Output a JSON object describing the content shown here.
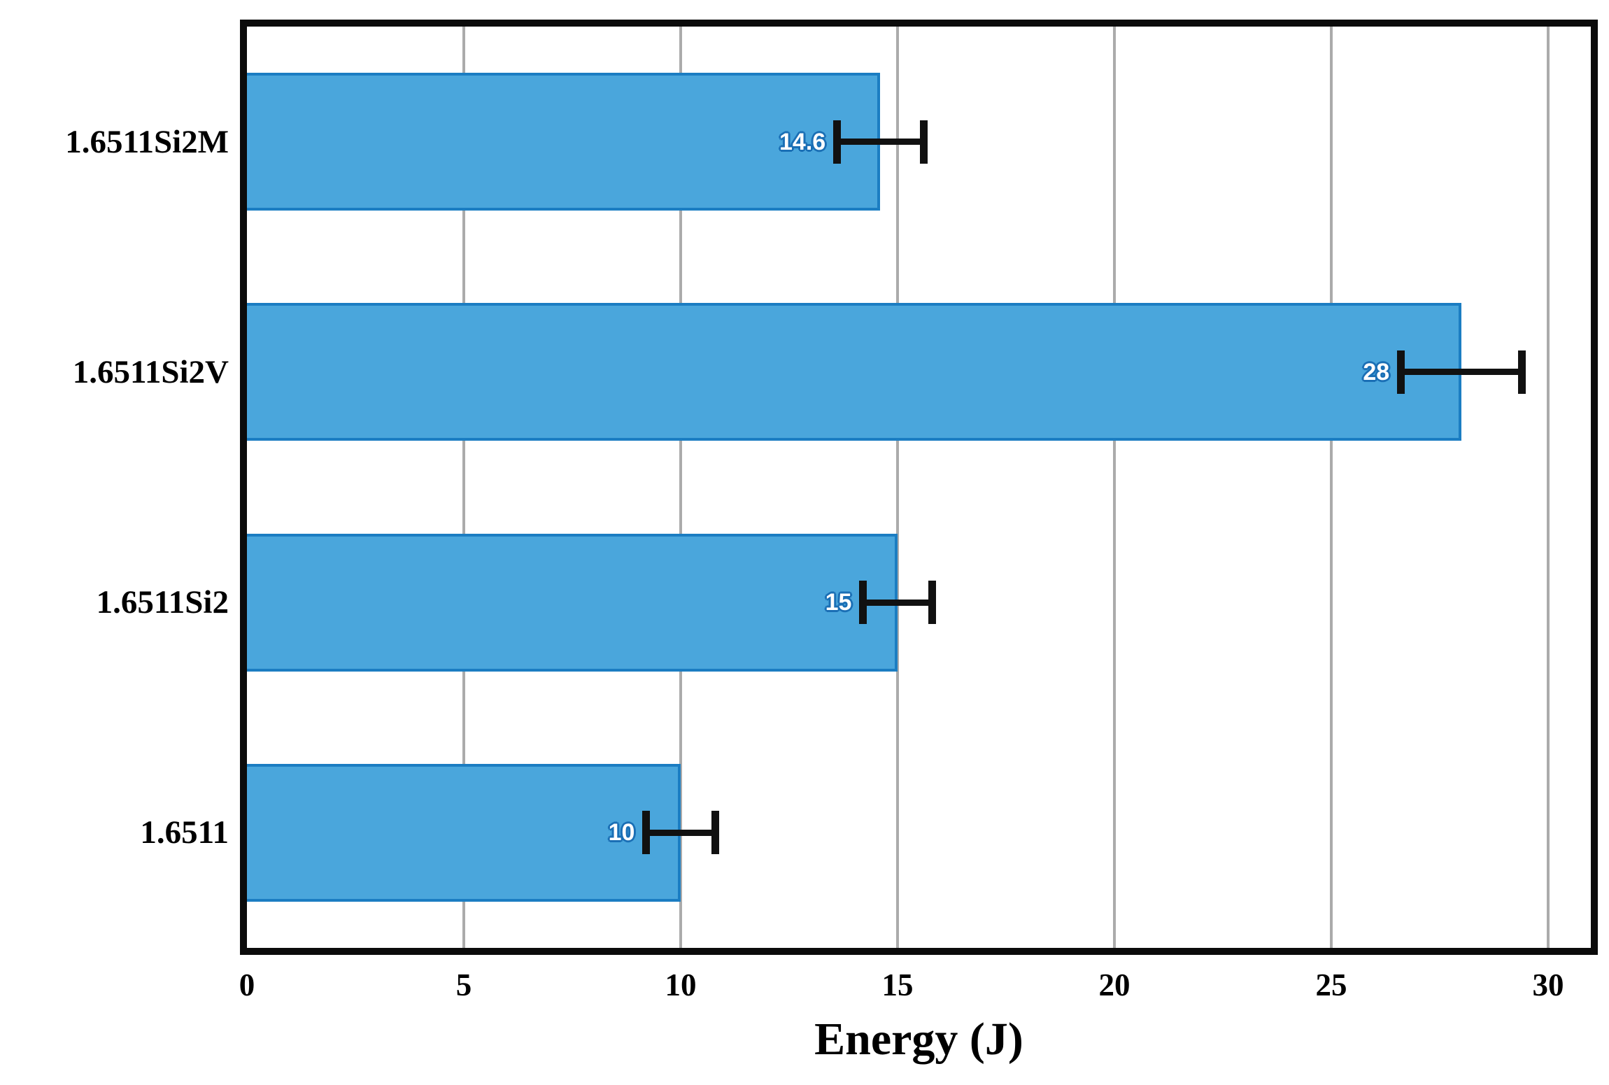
{
  "figure": {
    "background_color": "#FFFFFF",
    "frame_color": "#0B0B0B"
  },
  "chart_data": {
    "type": "bar",
    "orientation": "horizontal",
    "title": "",
    "xlabel": "Energy (J)",
    "ylabel": "",
    "categories_order": "top-to-bottom",
    "categories": [
      "1.6511Si2M",
      "1.6511Si2V",
      "1.6511Si2",
      "1.6511"
    ],
    "values": [
      14.6,
      28,
      15,
      10
    ],
    "value_labels": [
      "14.6",
      "28",
      "15",
      "10"
    ],
    "error_bars": {
      "axis": "x",
      "plus_minus": [
        1.0,
        1.4,
        0.8,
        0.8
      ]
    },
    "xlim": [
      0,
      31
    ],
    "xticks": [
      0,
      5,
      10,
      15,
      20,
      25,
      30
    ],
    "grid": "vertical-major",
    "legend": "none",
    "bar_color": "#4AA6DC",
    "bar_border_color": "#1B7DC2",
    "value_label_text_color": "#FFFFFF",
    "value_label_outline_color": "#1A6FB5",
    "gridline_color": "#ABABAB",
    "error_bar_color": "#111111",
    "text_color": "#000000"
  }
}
